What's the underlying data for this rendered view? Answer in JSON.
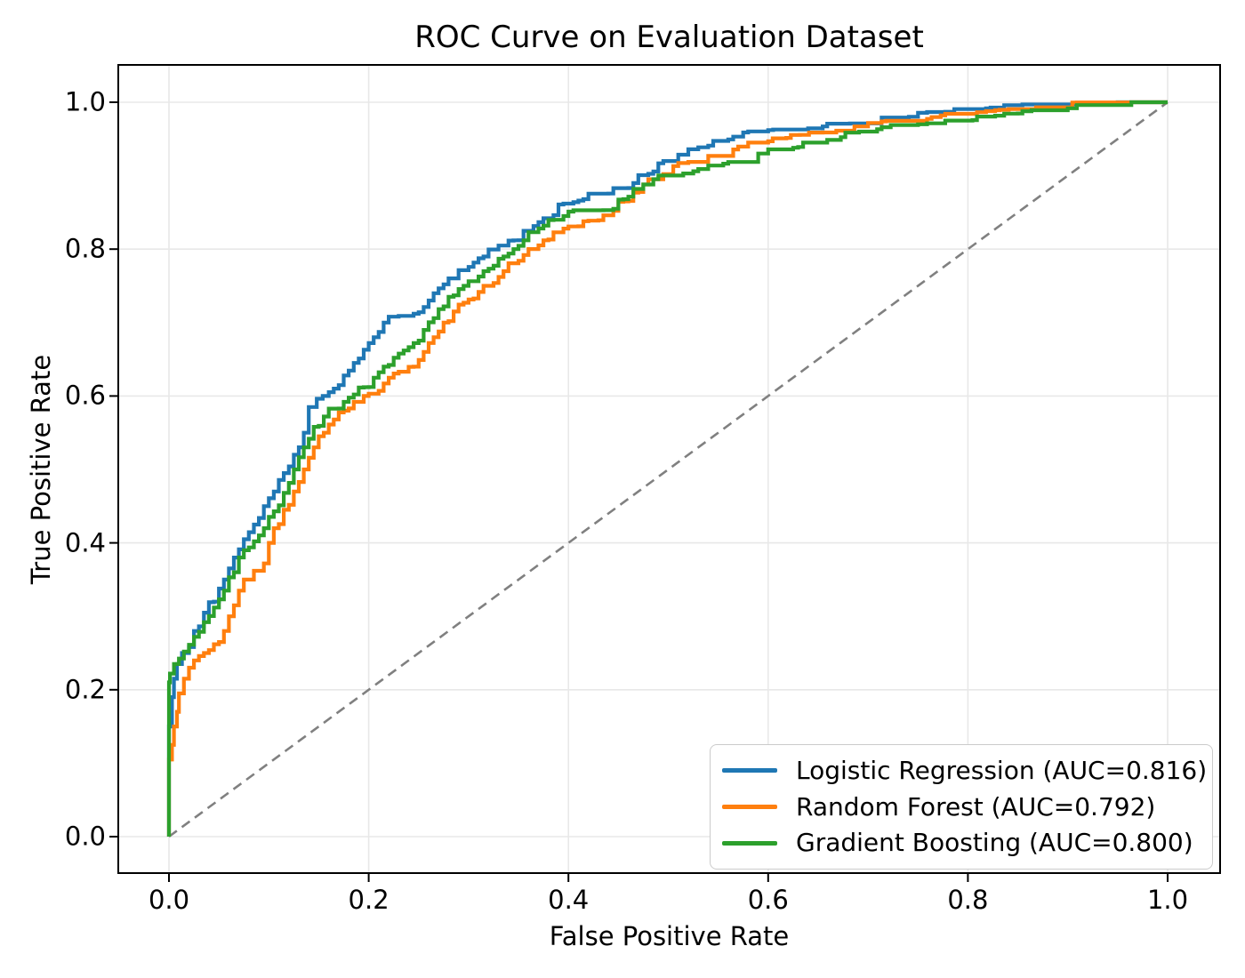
{
  "chart_data": {
    "type": "line",
    "title": "ROC Curve on Evaluation Dataset",
    "xlabel": "False Positive Rate",
    "ylabel": "True Positive Rate",
    "xlim": [
      0,
      1
    ],
    "ylim": [
      0,
      1
    ],
    "x_ticks": [
      0.0,
      0.2,
      0.4,
      0.6,
      0.8,
      1.0
    ],
    "y_ticks": [
      0.0,
      0.2,
      0.4,
      0.6,
      0.8,
      1.0
    ],
    "x_tick_labels": [
      "0.0",
      "0.2",
      "0.4",
      "0.6",
      "0.8",
      "1.0"
    ],
    "y_tick_labels": [
      "0.0",
      "0.2",
      "0.4",
      "0.6",
      "0.8",
      "1.0"
    ],
    "grid": true,
    "grid_color": "#e8e8e8",
    "legend_position": "lower right",
    "series": [
      {
        "name": "logistic-regression",
        "label": "Logistic Regression (AUC=0.816)",
        "auc": 0.816,
        "color": "#1f77b4",
        "points": [
          [
            0,
            0
          ],
          [
            0,
            0.105
          ],
          [
            0.003,
            0.15
          ],
          [
            0.005,
            0.19
          ],
          [
            0.008,
            0.215
          ],
          [
            0.013,
            0.235
          ],
          [
            0.02,
            0.25
          ],
          [
            0.03,
            0.28
          ],
          [
            0.04,
            0.305
          ],
          [
            0.05,
            0.32
          ],
          [
            0.06,
            0.35
          ],
          [
            0.07,
            0.38
          ],
          [
            0.08,
            0.405
          ],
          [
            0.09,
            0.425
          ],
          [
            0.1,
            0.45
          ],
          [
            0.11,
            0.47
          ],
          [
            0.12,
            0.495
          ],
          [
            0.13,
            0.52
          ],
          [
            0.14,
            0.55
          ],
          [
            0.148,
            0.585
          ],
          [
            0.16,
            0.6
          ],
          [
            0.17,
            0.61
          ],
          [
            0.18,
            0.628
          ],
          [
            0.19,
            0.645
          ],
          [
            0.2,
            0.663
          ],
          [
            0.21,
            0.68
          ],
          [
            0.22,
            0.7
          ],
          [
            0.24,
            0.705
          ],
          [
            0.25,
            0.712
          ],
          [
            0.27,
            0.74
          ],
          [
            0.28,
            0.752
          ],
          [
            0.3,
            0.77
          ],
          [
            0.32,
            0.79
          ],
          [
            0.34,
            0.802
          ],
          [
            0.35,
            0.812
          ],
          [
            0.36,
            0.825
          ],
          [
            0.38,
            0.842
          ],
          [
            0.4,
            0.862
          ],
          [
            0.42,
            0.868
          ],
          [
            0.44,
            0.873
          ],
          [
            0.45,
            0.883
          ],
          [
            0.47,
            0.89
          ],
          [
            0.48,
            0.9
          ],
          [
            0.5,
            0.92
          ],
          [
            0.52,
            0.928
          ],
          [
            0.54,
            0.936
          ],
          [
            0.56,
            0.947
          ],
          [
            0.575,
            0.953
          ],
          [
            0.6,
            0.955
          ],
          [
            0.63,
            0.959
          ],
          [
            0.65,
            0.962
          ],
          [
            0.7,
            0.97
          ],
          [
            0.75,
            0.978
          ],
          [
            0.8,
            0.985
          ],
          [
            0.85,
            0.99
          ],
          [
            0.9,
            0.993
          ],
          [
            0.95,
            0.997
          ],
          [
            1,
            1
          ]
        ]
      },
      {
        "name": "random-forest",
        "label": "Random Forest (AUC=0.792)",
        "auc": 0.792,
        "color": "#ff7f0e",
        "points": [
          [
            0,
            0
          ],
          [
            0,
            0.06
          ],
          [
            0.003,
            0.105
          ],
          [
            0.005,
            0.125
          ],
          [
            0.008,
            0.15
          ],
          [
            0.01,
            0.17
          ],
          [
            0.015,
            0.195
          ],
          [
            0.02,
            0.215
          ],
          [
            0.025,
            0.23
          ],
          [
            0.03,
            0.24
          ],
          [
            0.04,
            0.25
          ],
          [
            0.05,
            0.262
          ],
          [
            0.06,
            0.28
          ],
          [
            0.065,
            0.3
          ],
          [
            0.07,
            0.315
          ],
          [
            0.075,
            0.335
          ],
          [
            0.08,
            0.35
          ],
          [
            0.09,
            0.362
          ],
          [
            0.1,
            0.372
          ],
          [
            0.105,
            0.4
          ],
          [
            0.11,
            0.42
          ],
          [
            0.12,
            0.445
          ],
          [
            0.13,
            0.47
          ],
          [
            0.14,
            0.5
          ],
          [
            0.15,
            0.53
          ],
          [
            0.16,
            0.55
          ],
          [
            0.17,
            0.568
          ],
          [
            0.18,
            0.58
          ],
          [
            0.19,
            0.592
          ],
          [
            0.2,
            0.6
          ],
          [
            0.215,
            0.607
          ],
          [
            0.225,
            0.625
          ],
          [
            0.235,
            0.633
          ],
          [
            0.25,
            0.64
          ],
          [
            0.26,
            0.66
          ],
          [
            0.27,
            0.68
          ],
          [
            0.28,
            0.7
          ],
          [
            0.29,
            0.715
          ],
          [
            0.3,
            0.727
          ],
          [
            0.32,
            0.75
          ],
          [
            0.34,
            0.77
          ],
          [
            0.35,
            0.78
          ],
          [
            0.36,
            0.792
          ],
          [
            0.38,
            0.812
          ],
          [
            0.4,
            0.828
          ],
          [
            0.42,
            0.838
          ],
          [
            0.44,
            0.846
          ],
          [
            0.45,
            0.852
          ],
          [
            0.46,
            0.865
          ],
          [
            0.47,
            0.877
          ],
          [
            0.48,
            0.888
          ],
          [
            0.5,
            0.902
          ],
          [
            0.52,
            0.913
          ],
          [
            0.55,
            0.925
          ],
          [
            0.58,
            0.937
          ],
          [
            0.6,
            0.943
          ],
          [
            0.65,
            0.955
          ],
          [
            0.7,
            0.965
          ],
          [
            0.75,
            0.974
          ],
          [
            0.8,
            0.98
          ],
          [
            0.85,
            0.986
          ],
          [
            0.9,
            0.992
          ],
          [
            0.95,
            0.996
          ],
          [
            1,
            1
          ]
        ]
      },
      {
        "name": "gradient-boosting",
        "label": "Gradient Boosting (AUC=0.800)",
        "auc": 0.8,
        "color": "#2ca02c",
        "points": [
          [
            0,
            0
          ],
          [
            0,
            0.16
          ],
          [
            0.001,
            0.21
          ],
          [
            0.005,
            0.222
          ],
          [
            0.01,
            0.235
          ],
          [
            0.02,
            0.252
          ],
          [
            0.03,
            0.272
          ],
          [
            0.04,
            0.292
          ],
          [
            0.05,
            0.312
          ],
          [
            0.06,
            0.335
          ],
          [
            0.07,
            0.36
          ],
          [
            0.08,
            0.39
          ],
          [
            0.09,
            0.402
          ],
          [
            0.1,
            0.42
          ],
          [
            0.11,
            0.443
          ],
          [
            0.12,
            0.468
          ],
          [
            0.13,
            0.5
          ],
          [
            0.14,
            0.53
          ],
          [
            0.15,
            0.558
          ],
          [
            0.16,
            0.572
          ],
          [
            0.17,
            0.582
          ],
          [
            0.18,
            0.592
          ],
          [
            0.19,
            0.602
          ],
          [
            0.2,
            0.612
          ],
          [
            0.21,
            0.625
          ],
          [
            0.22,
            0.64
          ],
          [
            0.23,
            0.652
          ],
          [
            0.24,
            0.662
          ],
          [
            0.25,
            0.672
          ],
          [
            0.26,
            0.69
          ],
          [
            0.27,
            0.706
          ],
          [
            0.28,
            0.722
          ],
          [
            0.29,
            0.737
          ],
          [
            0.3,
            0.75
          ],
          [
            0.32,
            0.77
          ],
          [
            0.34,
            0.79
          ],
          [
            0.35,
            0.8
          ],
          [
            0.36,
            0.812
          ],
          [
            0.37,
            0.822
          ],
          [
            0.38,
            0.832
          ],
          [
            0.39,
            0.84
          ],
          [
            0.4,
            0.845
          ],
          [
            0.42,
            0.849
          ],
          [
            0.44,
            0.853
          ],
          [
            0.46,
            0.868
          ],
          [
            0.48,
            0.888
          ],
          [
            0.5,
            0.898
          ],
          [
            0.52,
            0.903
          ],
          [
            0.55,
            0.908
          ],
          [
            0.58,
            0.916
          ],
          [
            0.6,
            0.93
          ],
          [
            0.63,
            0.938
          ],
          [
            0.65,
            0.944
          ],
          [
            0.7,
            0.958
          ],
          [
            0.75,
            0.967
          ],
          [
            0.8,
            0.972
          ],
          [
            0.85,
            0.982
          ],
          [
            0.9,
            0.988
          ],
          [
            0.95,
            0.994
          ],
          [
            1,
            1
          ]
        ]
      }
    ],
    "reference_line": {
      "name": "chance-diagonal",
      "style": "dashed",
      "color": "#808080",
      "from": [
        0,
        0
      ],
      "to": [
        1,
        1
      ]
    }
  }
}
